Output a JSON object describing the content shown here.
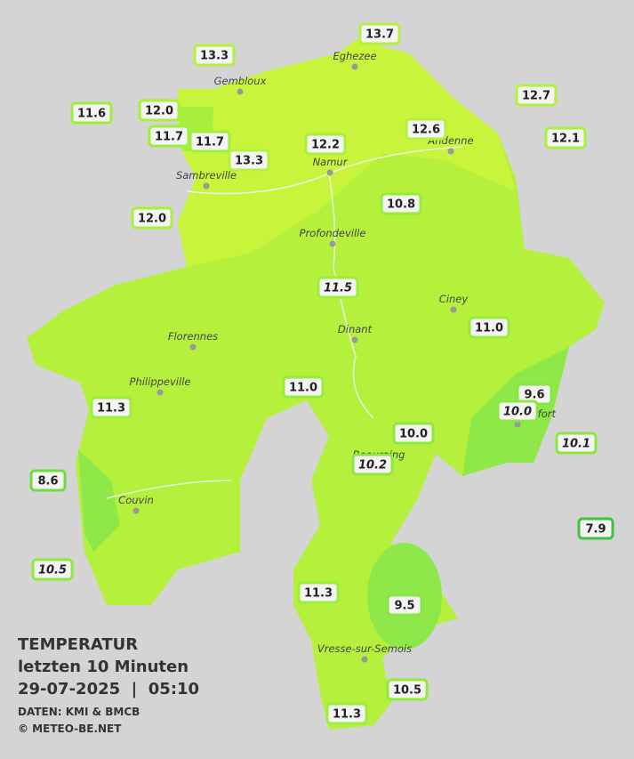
{
  "title": {
    "heading": "TEMPERATUR",
    "period": "letzten 10 Minuten",
    "datetime": "29-07-2025  |  05:10",
    "source": "DATEN: KMI & BMCB",
    "copyright": "© METEO-BE.NET"
  },
  "cities": [
    "Eghezee",
    "Gembloux",
    "Andenne",
    "Namur",
    "Sambreville",
    "Profondeville",
    "Ciney",
    "Dinant",
    "Florennes",
    "Philippeville",
    "Rochefort",
    "Beauraing",
    "Couvin",
    "Vresse-sur-Semois"
  ],
  "stations": [
    {
      "label": "13.7",
      "color": "#b2f23c"
    },
    {
      "label": "13.3",
      "color": "#b2f23c"
    },
    {
      "label": "12.7",
      "color": "#b2f23c"
    },
    {
      "label": "11.6",
      "color": "#a0ee3c"
    },
    {
      "label": "12.0",
      "color": "#a8f03c"
    },
    {
      "label": "11.7",
      "color": "#a0ee3c"
    },
    {
      "label": "11.7",
      "color": "#a0ee3c"
    },
    {
      "label": "13.3",
      "color": "#b2f23c"
    },
    {
      "label": "12.2",
      "color": "#a8f03c"
    },
    {
      "label": "12.6",
      "color": "#b2f23c"
    },
    {
      "label": "12.1",
      "color": "#a8f03c"
    },
    {
      "label": "12.0",
      "color": "#a8f03c"
    },
    {
      "label": "10.8",
      "color": "#96ec3c"
    },
    {
      "label": "11.5",
      "color": "#9cee3c",
      "italic": true
    },
    {
      "label": "11.0",
      "color": "#96ec3c"
    },
    {
      "label": "11.0",
      "color": "#96ec3c"
    },
    {
      "label": "11.3",
      "color": "#9cee3c"
    },
    {
      "label": "9.6",
      "color": "#84e63e"
    },
    {
      "label": "10.0",
      "color": "#8ce83e",
      "italic": true
    },
    {
      "label": "10.0",
      "color": "#8ce83e"
    },
    {
      "label": "10.1",
      "color": "#8ce83e",
      "italic": true
    },
    {
      "label": "10.2",
      "color": "#8ce83e",
      "italic": true
    },
    {
      "label": "8.6",
      "color": "#6cde40"
    },
    {
      "label": "7.9",
      "color": "#3ec43e"
    },
    {
      "label": "10.5",
      "color": "#90ea3c",
      "italic": true
    },
    {
      "label": "11.3",
      "color": "#9cee3c"
    },
    {
      "label": "9.5",
      "color": "#84e63e"
    },
    {
      "label": "10.5",
      "color": "#90ea3c"
    },
    {
      "label": "11.3",
      "color": "#9cee3c"
    }
  ]
}
